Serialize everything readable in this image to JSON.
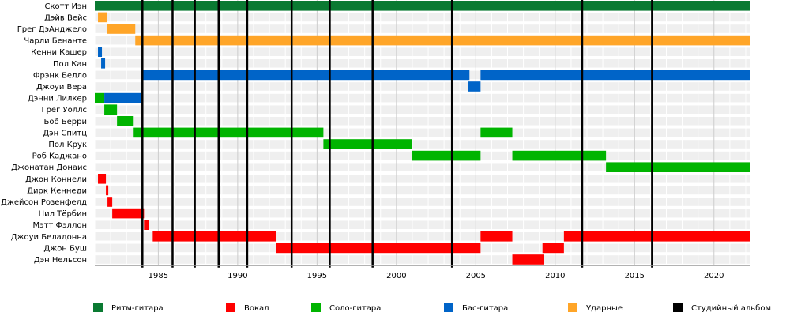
{
  "chart_data": {
    "type": "timeline",
    "x_range": [
      1981.0,
      2022.3
    ],
    "x_ticks": [
      1985,
      1990,
      1995,
      2000,
      2005,
      2010,
      2015,
      2020
    ],
    "grid": true,
    "legend_position": "bottom",
    "roles": [
      {
        "key": "rhythm",
        "label": "Ритм-гитара",
        "color": "#0a7a32"
      },
      {
        "key": "vocal",
        "label": "Вокал",
        "color": "#ff0000"
      },
      {
        "key": "lead",
        "label": "Соло-гитара",
        "color": "#00b400"
      },
      {
        "key": "bass",
        "label": "Бас-гитара",
        "color": "#0064c8"
      },
      {
        "key": "drums",
        "label": "Ударные",
        "color": "#ffa528"
      },
      {
        "key": "album",
        "label": "Студийный альбом",
        "color": "#000000"
      }
    ],
    "members": [
      {
        "name": "Скотт Иэн",
        "periods": [
          {
            "role": "rhythm",
            "start": 1981.0,
            "end": 2022.3
          }
        ]
      },
      {
        "name": "Дэйв Вейс",
        "periods": [
          {
            "role": "drums",
            "start": 1981.2,
            "end": 1981.75
          }
        ]
      },
      {
        "name": "Грег ДэАнджело",
        "periods": [
          {
            "role": "drums",
            "start": 1981.75,
            "end": 1983.55
          }
        ]
      },
      {
        "name": "Чарли Бенанте",
        "periods": [
          {
            "role": "drums",
            "start": 1983.55,
            "end": 2022.3
          }
        ]
      },
      {
        "name": "Кенни Кашер",
        "periods": [
          {
            "role": "bass",
            "start": 1981.2,
            "end": 1981.45
          }
        ]
      },
      {
        "name": "Пол Кан",
        "periods": [
          {
            "role": "bass",
            "start": 1981.4,
            "end": 1981.65
          }
        ]
      },
      {
        "name": "Фрэнк Белло",
        "periods": [
          {
            "role": "bass",
            "start": 1983.95,
            "end": 2004.6
          },
          {
            "role": "bass",
            "start": 2005.3,
            "end": 2022.3
          }
        ]
      },
      {
        "name": "Джоуи Вера",
        "periods": [
          {
            "role": "bass",
            "start": 2004.5,
            "end": 2005.3
          }
        ]
      },
      {
        "name": "Дэнни Лилкер",
        "periods": [
          {
            "role": "lead",
            "start": 1981.0,
            "end": 1981.6
          },
          {
            "role": "bass",
            "start": 1981.6,
            "end": 1983.95
          }
        ]
      },
      {
        "name": "Грег Уоллс",
        "periods": [
          {
            "role": "lead",
            "start": 1981.6,
            "end": 1982.4
          }
        ]
      },
      {
        "name": "Боб Берри",
        "periods": [
          {
            "role": "lead",
            "start": 1982.4,
            "end": 1983.4
          }
        ]
      },
      {
        "name": "Дэн Спитц",
        "periods": [
          {
            "role": "lead",
            "start": 1983.4,
            "end": 1995.4
          },
          {
            "role": "lead",
            "start": 2005.3,
            "end": 2007.3
          }
        ]
      },
      {
        "name": "Пол Крук",
        "periods": [
          {
            "role": "lead",
            "start": 1995.4,
            "end": 2001.0
          }
        ]
      },
      {
        "name": "Роб Каджано",
        "periods": [
          {
            "role": "lead",
            "start": 2001.0,
            "end": 2005.3
          },
          {
            "role": "lead",
            "start": 2007.3,
            "end": 2013.2
          }
        ]
      },
      {
        "name": "Джонатан Донаис",
        "periods": [
          {
            "role": "lead",
            "start": 2013.2,
            "end": 2022.3
          }
        ]
      },
      {
        "name": "Джон Коннели",
        "periods": [
          {
            "role": "vocal",
            "start": 1981.2,
            "end": 1981.7
          }
        ]
      },
      {
        "name": "Дирк Кеннеди",
        "periods": [
          {
            "role": "vocal",
            "start": 1981.7,
            "end": 1981.85
          }
        ]
      },
      {
        "name": "Джейсон Розенфелд",
        "periods": [
          {
            "role": "vocal",
            "start": 1981.8,
            "end": 1982.1
          }
        ]
      },
      {
        "name": "Нил Тёрбин",
        "periods": [
          {
            "role": "vocal",
            "start": 1982.1,
            "end": 1984.1
          }
        ]
      },
      {
        "name": "Мэтт Фэллон",
        "periods": [
          {
            "role": "vocal",
            "start": 1984.1,
            "end": 1984.4
          }
        ]
      },
      {
        "name": "Джоуи Беладонна",
        "periods": [
          {
            "role": "vocal",
            "start": 1984.65,
            "end": 1992.4
          },
          {
            "role": "vocal",
            "start": 2005.3,
            "end": 2007.3
          },
          {
            "role": "vocal",
            "start": 2010.55,
            "end": 2022.3
          }
        ]
      },
      {
        "name": "Джон Буш",
        "periods": [
          {
            "role": "vocal",
            "start": 1992.4,
            "end": 2005.3
          },
          {
            "role": "vocal",
            "start": 2009.2,
            "end": 2010.55
          }
        ]
      },
      {
        "name": "Дэн Нельсон",
        "periods": [
          {
            "role": "vocal",
            "start": 2007.3,
            "end": 2009.3
          }
        ]
      }
    ],
    "albums": [
      1984.0,
      1985.9,
      1987.3,
      1988.8,
      1990.6,
      1993.4,
      1995.8,
      1998.5,
      2003.5,
      2011.7,
      2016.1
    ]
  }
}
